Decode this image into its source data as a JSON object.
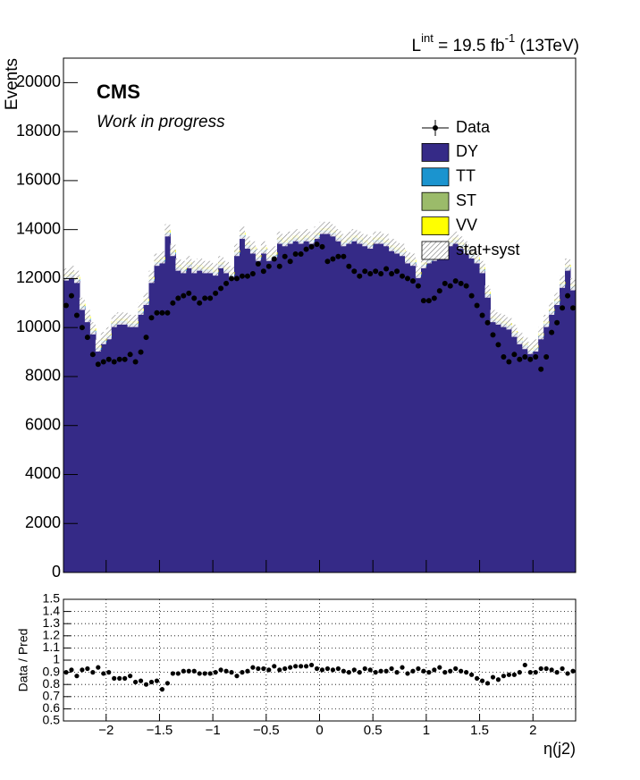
{
  "chart_data": {
    "type": "histogram",
    "lumi": [
      "L",
      "int",
      " = 19.5 fb",
      "-1",
      " (13TeV)"
    ],
    "cms_label": "CMS",
    "cms_sublabel": "Work in progress",
    "ylabel": "Events",
    "xlabel": "η(j2)",
    "xlim": [
      -2.4,
      2.4
    ],
    "ylim": [
      0,
      21000
    ],
    "yticks": [
      0,
      2000,
      4000,
      6000,
      8000,
      10000,
      12000,
      14000,
      16000,
      18000,
      20000
    ],
    "xticks": [
      {
        "value": -2,
        "label": "−2"
      },
      {
        "value": -1.5,
        "label": "−1.5"
      },
      {
        "value": -1,
        "label": "−1"
      },
      {
        "value": -0.5,
        "label": "−0.5"
      },
      0,
      0.5,
      1,
      1.5,
      2
    ],
    "bins": [
      -2.4,
      -2.35,
      -2.3,
      -2.25,
      -2.2,
      -2.15,
      -2.1,
      -2.05,
      -2,
      -1.95,
      -1.9,
      -1.85,
      -1.8,
      -1.75,
      -1.7,
      -1.65,
      -1.6,
      -1.55,
      -1.5,
      -1.45,
      -1.4,
      -1.35,
      -1.3,
      -1.25,
      -1.2,
      -1.15,
      -1.1,
      -1.05,
      -1,
      -0.95,
      -0.9,
      -0.85,
      -0.8,
      -0.75,
      -0.7,
      -0.65,
      -0.6,
      -0.55,
      -0.5,
      -0.45,
      -0.4,
      -0.35,
      -0.3,
      -0.25,
      -0.2,
      -0.15,
      -0.1,
      -0.05,
      0,
      0.05,
      0.1,
      0.15,
      0.2,
      0.25,
      0.3,
      0.35,
      0.4,
      0.45,
      0.5,
      0.55,
      0.6,
      0.65,
      0.7,
      0.75,
      0.8,
      0.85,
      0.9,
      0.95,
      1,
      1.05,
      1.1,
      1.15,
      1.2,
      1.25,
      1.3,
      1.35,
      1.4,
      1.45,
      1.5,
      1.55,
      1.6,
      1.65,
      1.7,
      1.75,
      1.8,
      1.85,
      1.9,
      1.95,
      2,
      2.05,
      2.1,
      2.15,
      2.2,
      2.25,
      2.3,
      2.35,
      2.4
    ],
    "series": [
      {
        "name": "DY",
        "color": "#352a87",
        "values": [
          12000,
          12100,
          11900,
          10800,
          10300,
          9800,
          9100,
          9400,
          9600,
          10100,
          10200,
          10200,
          10100,
          10100,
          10600,
          11000,
          11900,
          12600,
          12700,
          13800,
          13000,
          12400,
          12300,
          12500,
          12300,
          12400,
          12300,
          12300,
          12200,
          12500,
          12300,
          12100,
          13000,
          13700,
          13300,
          13100,
          12800,
          13100,
          12800,
          12900,
          13500,
          13400,
          13500,
          13600,
          13500,
          13600,
          13500,
          13700,
          13900,
          13900,
          13800,
          13600,
          13400,
          13500,
          13600,
          13500,
          13400,
          13300,
          13500,
          13500,
          13400,
          13200,
          13100,
          13000,
          12700,
          12600,
          12100,
          12500,
          12700,
          12800,
          12900,
          13100,
          13400,
          13500,
          13300,
          13100,
          12900,
          12700,
          12300,
          11300,
          10300,
          10200,
          10100,
          10000,
          9700,
          9400,
          9200,
          9000,
          9100,
          9600,
          10100,
          10600,
          11000,
          11700,
          12400,
          11600
        ]
      },
      {
        "name": "TT",
        "color": "#1b94cf",
        "values": [
          60,
          60,
          60,
          60,
          60,
          60,
          60,
          60,
          60,
          60,
          60,
          60,
          60,
          60,
          60,
          60,
          60,
          60,
          60,
          60,
          60,
          60,
          60,
          60,
          60,
          60,
          60,
          60,
          60,
          60,
          60,
          60,
          60,
          60,
          60,
          60,
          60,
          60,
          60,
          60,
          60,
          60,
          60,
          60,
          60,
          60,
          60,
          60,
          60,
          60,
          60,
          60,
          60,
          60,
          60,
          60,
          60,
          60,
          60,
          60,
          60,
          60,
          60,
          60,
          60,
          60,
          60,
          60,
          60,
          60,
          60,
          60,
          60,
          60,
          60,
          60,
          60,
          60,
          60,
          60,
          60,
          60,
          60,
          60,
          60,
          60,
          60,
          60,
          60,
          60,
          60,
          60,
          60,
          60,
          60,
          60
        ]
      },
      {
        "name": "ST",
        "color": "#9bbb6a",
        "values": [
          20,
          20,
          20,
          20,
          20,
          20,
          20,
          20,
          20,
          20,
          20,
          20,
          20,
          20,
          20,
          20,
          20,
          20,
          20,
          20,
          20,
          20,
          20,
          20,
          20,
          20,
          20,
          20,
          20,
          20,
          20,
          20,
          20,
          20,
          20,
          20,
          20,
          20,
          20,
          20,
          20,
          20,
          20,
          20,
          20,
          20,
          20,
          20,
          20,
          20,
          20,
          20,
          20,
          20,
          20,
          20,
          20,
          20,
          20,
          20,
          20,
          20,
          20,
          20,
          20,
          20,
          20,
          20,
          20,
          20,
          20,
          20,
          20,
          20,
          20,
          20,
          20,
          20,
          20,
          20,
          20,
          20,
          20,
          20,
          20,
          20,
          20,
          20,
          20,
          20,
          20,
          20,
          20,
          20,
          20,
          20
        ]
      },
      {
        "name": "VV",
        "color": "#ffff00",
        "values": [
          90,
          90,
          90,
          90,
          90,
          90,
          90,
          90,
          90,
          90,
          90,
          90,
          90,
          90,
          90,
          90,
          90,
          90,
          90,
          90,
          90,
          90,
          90,
          90,
          90,
          90,
          90,
          90,
          90,
          90,
          90,
          90,
          90,
          90,
          90,
          90,
          90,
          90,
          90,
          90,
          90,
          90,
          90,
          90,
          90,
          90,
          90,
          90,
          90,
          90,
          90,
          90,
          90,
          90,
          90,
          90,
          90,
          90,
          90,
          90,
          90,
          90,
          90,
          90,
          90,
          90,
          90,
          90,
          90,
          90,
          90,
          90,
          90,
          90,
          90,
          90,
          90,
          90,
          90,
          90,
          90,
          90,
          90,
          90,
          90,
          90,
          90,
          90,
          90,
          90,
          90,
          90,
          90,
          90,
          90,
          90
        ]
      }
    ],
    "band": {
      "name": "stat+syst",
      "color": "#888888",
      "values": [
        250,
        250,
        250,
        250,
        250,
        250,
        250,
        250,
        250,
        250,
        250,
        250,
        250,
        250,
        250,
        250,
        250,
        250,
        250,
        250,
        250,
        250,
        250,
        250,
        250,
        250,
        250,
        250,
        250,
        250,
        250,
        250,
        250,
        250,
        250,
        250,
        250,
        250,
        250,
        250,
        250,
        250,
        250,
        250,
        250,
        250,
        250,
        250,
        250,
        250,
        250,
        250,
        250,
        250,
        250,
        250,
        250,
        250,
        250,
        250,
        250,
        250,
        250,
        250,
        250,
        250,
        250,
        250,
        250,
        250,
        250,
        250,
        250,
        250,
        250,
        250,
        250,
        250,
        250,
        250,
        250,
        250,
        250,
        250,
        250,
        250,
        250,
        250,
        250,
        250,
        250,
        250,
        250,
        250,
        250,
        250
      ]
    },
    "data": {
      "name": "Data",
      "color": "#000000",
      "values": [
        10900,
        11300,
        10500,
        10000,
        9600,
        8900,
        8500,
        8600,
        8700,
        8600,
        8700,
        8700,
        8900,
        8600,
        9000,
        9600,
        10400,
        10600,
        10600,
        10600,
        11000,
        11200,
        11300,
        11400,
        11200,
        11000,
        11200,
        11200,
        11400,
        11600,
        11800,
        12000,
        12000,
        12100,
        12100,
        12200,
        12600,
        12300,
        12500,
        12800,
        12500,
        12900,
        12700,
        13000,
        13000,
        13200,
        13300,
        13400,
        13300,
        12700,
        12800,
        12900,
        12900,
        12500,
        12300,
        12100,
        12300,
        12200,
        12300,
        12200,
        12400,
        12200,
        12300,
        12100,
        12000,
        11900,
        11700,
        11100,
        11100,
        11200,
        11500,
        11800,
        11700,
        11900,
        11800,
        11700,
        11300,
        10900,
        10500,
        10200,
        9700,
        9300,
        8800,
        8600,
        8900,
        8700,
        8800,
        8700,
        8800,
        8300,
        8800,
        9800,
        10200,
        10800,
        11300,
        10800
      ]
    },
    "ratio": {
      "ylabel": "Data / Pred",
      "ylim": [
        0.5,
        1.5
      ],
      "yticks": [
        0.5,
        0.6,
        0.7,
        0.8,
        0.9,
        1,
        1.1,
        1.2,
        1.3,
        1.4,
        1.5
      ],
      "grid": true,
      "values": [
        0.9,
        0.92,
        0.87,
        0.92,
        0.93,
        0.9,
        0.94,
        0.89,
        0.9,
        0.85,
        0.85,
        0.85,
        0.87,
        0.82,
        0.83,
        0.8,
        0.82,
        0.83,
        0.76,
        0.81,
        0.89,
        0.89,
        0.91,
        0.91,
        0.91,
        0.89,
        0.89,
        0.89,
        0.9,
        0.92,
        0.91,
        0.9,
        0.87,
        0.9,
        0.91,
        0.94,
        0.93,
        0.93,
        0.92,
        0.95,
        0.92,
        0.93,
        0.94,
        0.95,
        0.95,
        0.95,
        0.96,
        0.93,
        0.92,
        0.93,
        0.92,
        0.93,
        0.91,
        0.9,
        0.92,
        0.9,
        0.93,
        0.92,
        0.9,
        0.91,
        0.91,
        0.93,
        0.9,
        0.94,
        0.89,
        0.91,
        0.93,
        0.91,
        0.9,
        0.92,
        0.94,
        0.9,
        0.91,
        0.93,
        0.91,
        0.9,
        0.88,
        0.85,
        0.83,
        0.81,
        0.86,
        0.84,
        0.87,
        0.88,
        0.88,
        0.9,
        0.96,
        0.9,
        0.9,
        0.93,
        0.93,
        0.92,
        0.9,
        0.93,
        0.89,
        0.91
      ]
    }
  }
}
